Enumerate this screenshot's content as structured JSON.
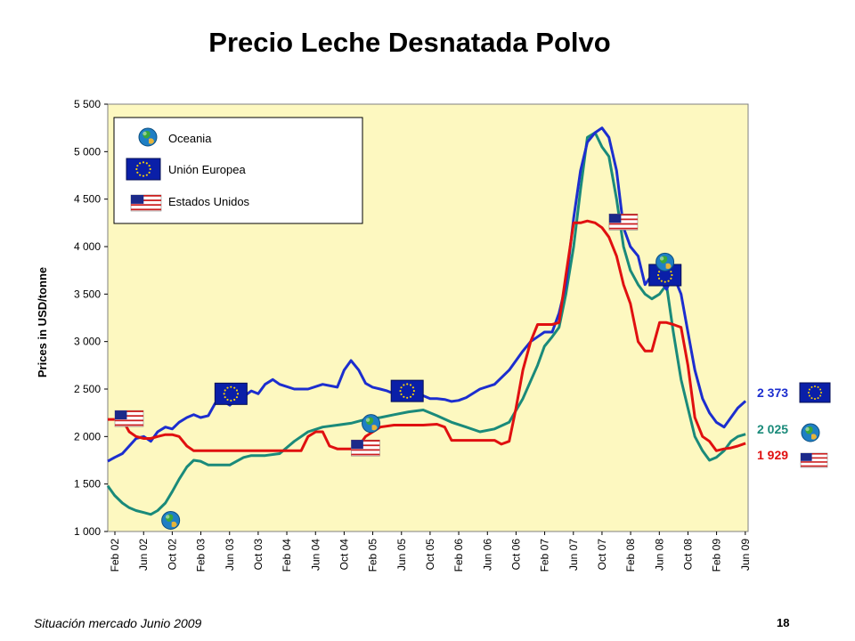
{
  "chart_data": {
    "type": "line",
    "title": "Precio Leche Desnatada Polvo",
    "ylabel": "Prices in USD/tonne",
    "ylim": [
      1000,
      5500
    ],
    "yticks": [
      "1 000",
      "1 500",
      "2 000",
      "2 500",
      "3 000",
      "3 500",
      "4 000",
      "4 500",
      "5 000",
      "5 500"
    ],
    "ytick_values": [
      1000,
      1500,
      2000,
      2500,
      3000,
      3500,
      4000,
      4500,
      5000,
      5500
    ],
    "xlim": [
      2002.0,
      2009.45
    ],
    "xtick_labels": [
      "Feb 02",
      "Jun 02",
      "Oct 02",
      "Feb 03",
      "Jun 03",
      "Oct 03",
      "Feb 04",
      "Jun 04",
      "Oct 04",
      "Feb 05",
      "Jun 05",
      "Oct 05",
      "Feb 06",
      "Jun 06",
      "Oct 06",
      "Feb 07",
      "Jun 07",
      "Oct 07",
      "Feb 08",
      "Jun 08",
      "Oct 08",
      "Feb 09",
      "Jun 09"
    ],
    "xtick_values": [
      2002.083,
      2002.417,
      2002.75,
      2003.083,
      2003.417,
      2003.75,
      2004.083,
      2004.417,
      2004.75,
      2005.083,
      2005.417,
      2005.75,
      2006.083,
      2006.417,
      2006.75,
      2007.083,
      2007.417,
      2007.75,
      2008.083,
      2008.417,
      2008.75,
      2009.083,
      2009.417
    ],
    "grid": false,
    "legend_position": "top-left",
    "series": [
      {
        "name": "Oceania",
        "color": "#1a8a7a",
        "icon": "globe-icon",
        "x": [
          2002.0,
          2002.08,
          2002.17,
          2002.25,
          2002.33,
          2002.42,
          2002.5,
          2002.58,
          2002.67,
          2002.75,
          2002.83,
          2002.92,
          2003.0,
          2003.08,
          2003.17,
          2003.25,
          2003.42,
          2003.58,
          2003.67,
          2003.83,
          2004.0,
          2004.17,
          2004.33,
          2004.5,
          2004.67,
          2004.83,
          2005.0,
          2005.17,
          2005.33,
          2005.5,
          2005.67,
          2005.83,
          2006.0,
          2006.17,
          2006.33,
          2006.5,
          2006.67,
          2006.83,
          2007.0,
          2007.08,
          2007.17,
          2007.25,
          2007.33,
          2007.42,
          2007.5,
          2007.58,
          2007.67,
          2007.75,
          2007.83,
          2007.92,
          2008.0,
          2008.08,
          2008.17,
          2008.25,
          2008.33,
          2008.42,
          2008.5,
          2008.58,
          2008.67,
          2008.75,
          2008.83,
          2008.92,
          2009.0,
          2009.08,
          2009.17,
          2009.25,
          2009.33,
          2009.42
        ],
        "values": [
          1480,
          1380,
          1300,
          1250,
          1220,
          1200,
          1180,
          1220,
          1300,
          1420,
          1550,
          1680,
          1750,
          1740,
          1700,
          1700,
          1700,
          1780,
          1800,
          1800,
          1820,
          1950,
          2050,
          2100,
          2120,
          2140,
          2180,
          2200,
          2230,
          2260,
          2280,
          2220,
          2150,
          2100,
          2050,
          2080,
          2150,
          2400,
          2750,
          2950,
          3050,
          3150,
          3500,
          4000,
          4600,
          5150,
          5200,
          5050,
          4950,
          4500,
          4000,
          3750,
          3600,
          3500,
          3450,
          3500,
          3600,
          3100,
          2600,
          2300,
          2000,
          1850,
          1750,
          1780,
          1850,
          1950,
          2000,
          2025
        ]
      },
      {
        "name": "Unión Europea",
        "color": "#1c2ecf",
        "icon": "eu-flag-icon",
        "x": [
          2002.0,
          2002.08,
          2002.17,
          2002.25,
          2002.33,
          2002.42,
          2002.5,
          2002.58,
          2002.67,
          2002.75,
          2002.83,
          2002.92,
          2003.0,
          2003.08,
          2003.17,
          2003.25,
          2003.33,
          2003.42,
          2003.5,
          2003.58,
          2003.67,
          2003.75,
          2003.83,
          2003.92,
          2004.0,
          2004.17,
          2004.33,
          2004.5,
          2004.67,
          2004.75,
          2004.83,
          2004.92,
          2005.0,
          2005.08,
          2005.17,
          2005.25,
          2005.33,
          2005.42,
          2005.5,
          2005.58,
          2005.67,
          2005.75,
          2005.83,
          2005.92,
          2006.0,
          2006.08,
          2006.17,
          2006.33,
          2006.5,
          2006.67,
          2006.75,
          2006.83,
          2006.92,
          2007.0,
          2007.08,
          2007.17,
          2007.25,
          2007.33,
          2007.42,
          2007.5,
          2007.58,
          2007.67,
          2007.75,
          2007.83,
          2007.92,
          2008.0,
          2008.08,
          2008.17,
          2008.25,
          2008.33,
          2008.42,
          2008.5,
          2008.58,
          2008.67,
          2008.75,
          2008.83,
          2008.92,
          2009.0,
          2009.08,
          2009.17,
          2009.25,
          2009.33,
          2009.42
        ],
        "values": [
          1740,
          1780,
          1820,
          1900,
          1980,
          2000,
          1950,
          2050,
          2100,
          2080,
          2150,
          2200,
          2230,
          2200,
          2220,
          2350,
          2380,
          2330,
          2400,
          2420,
          2480,
          2450,
          2550,
          2600,
          2550,
          2500,
          2500,
          2550,
          2520,
          2700,
          2800,
          2700,
          2560,
          2520,
          2500,
          2480,
          2450,
          2500,
          2480,
          2480,
          2430,
          2400,
          2400,
          2390,
          2370,
          2380,
          2410,
          2500,
          2550,
          2700,
          2800,
          2900,
          3000,
          3050,
          3100,
          3100,
          3300,
          3600,
          4300,
          4800,
          5100,
          5200,
          5250,
          5150,
          4800,
          4200,
          4000,
          3900,
          3600,
          3700,
          3650,
          3550,
          3700,
          3500,
          3100,
          2700,
          2400,
          2250,
          2150,
          2100,
          2200,
          2300,
          2373
        ]
      },
      {
        "name": "Estados Unidos",
        "color": "#e01010",
        "icon": "us-flag-icon",
        "x": [
          2002.0,
          2002.17,
          2002.25,
          2002.33,
          2002.42,
          2002.5,
          2002.58,
          2002.67,
          2002.75,
          2002.83,
          2002.92,
          2003.0,
          2003.08,
          2003.25,
          2003.5,
          2003.75,
          2004.0,
          2004.17,
          2004.25,
          2004.33,
          2004.42,
          2004.5,
          2004.58,
          2004.67,
          2004.75,
          2004.83,
          2004.92,
          2005.0,
          2005.17,
          2005.33,
          2005.5,
          2005.67,
          2005.83,
          2005.92,
          2006.0,
          2006.17,
          2006.33,
          2006.5,
          2006.58,
          2006.67,
          2006.75,
          2006.83,
          2006.92,
          2007.0,
          2007.08,
          2007.17,
          2007.25,
          2007.33,
          2007.42,
          2007.5,
          2007.58,
          2007.67,
          2007.75,
          2007.83,
          2007.92,
          2008.0,
          2008.08,
          2008.17,
          2008.25,
          2008.33,
          2008.42,
          2008.5,
          2008.58,
          2008.67,
          2008.75,
          2008.83,
          2008.92,
          2009.0,
          2009.08,
          2009.17,
          2009.25,
          2009.33,
          2009.42
        ],
        "values": [
          2180,
          2180,
          2050,
          2000,
          1980,
          1980,
          2000,
          2020,
          2020,
          2000,
          1900,
          1850,
          1850,
          1850,
          1850,
          1850,
          1850,
          1850,
          1850,
          2000,
          2050,
          2050,
          1900,
          1870,
          1870,
          1870,
          1900,
          2000,
          2100,
          2120,
          2120,
          2120,
          2130,
          2100,
          1960,
          1960,
          1960,
          1960,
          1920,
          1950,
          2300,
          2700,
          3000,
          3180,
          3180,
          3180,
          3200,
          3700,
          4250,
          4250,
          4270,
          4250,
          4200,
          4100,
          3900,
          3600,
          3400,
          3000,
          2900,
          2900,
          3200,
          3200,
          3180,
          3150,
          2750,
          2200,
          2000,
          1950,
          1850,
          1870,
          1880,
          1900,
          1929
        ]
      }
    ],
    "end_labels": [
      {
        "text": "2 373",
        "color": "#1c2ecf"
      },
      {
        "text": "2 025",
        "color": "#1a8a7a"
      },
      {
        "text": "1 929",
        "color": "#e01010"
      }
    ]
  },
  "footer": "Situación mercado Junio 2009",
  "page_number": "18"
}
